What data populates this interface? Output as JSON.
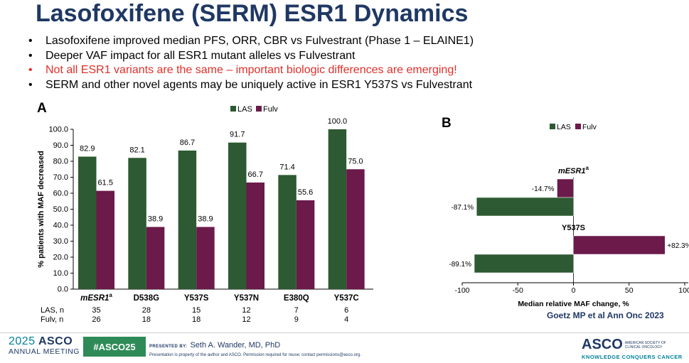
{
  "slide": {
    "title": "Lasofoxifene (SERM) ESR1 Dynamics",
    "bullets": [
      {
        "text": "Lasofoxifene improved median PFS, ORR, CBR vs Fulvestrant (Phase 1 – ELAINE1)",
        "color": "#000000"
      },
      {
        "text": "Deeper VAF impact for all ESR1 mutant alleles vs Fulvestrant",
        "color": "#000000"
      },
      {
        "text": "Not all ESR1 variants are the same – important biologic differences are emerging!",
        "color": "#e0302a"
      },
      {
        "text": "SERM and other novel agents may be uniquely active in ESR1 Y537S vs Fulvestrant",
        "color": "#000000"
      }
    ],
    "bullet_char": "•",
    "citation": "Goetz MP et al Ann Onc 2023"
  },
  "colors": {
    "las": "#2d5a32",
    "fulv": "#6b1a4a",
    "title": "#1f3864",
    "accent": "#00829b"
  },
  "chart_data": [
    {
      "panel": "A",
      "type": "bar",
      "ylabel": "% patients with MAF decreased",
      "ylim": [
        0,
        100
      ],
      "yticks": [
        "0.0",
        "10.0",
        "20.0",
        "30.0",
        "40.0",
        "50.0",
        "60.0",
        "70.0",
        "80.0",
        "90.0",
        "100.0"
      ],
      "categories": [
        "mESR1",
        "D538G",
        "Y537S",
        "Y537N",
        "E380Q",
        "Y537C"
      ],
      "first_category_superscript": "a",
      "series": [
        {
          "name": "LAS",
          "values": [
            82.9,
            82.1,
            86.7,
            91.7,
            71.4,
            100.0
          ],
          "labels": [
            "82.9",
            "82.1",
            "86.7",
            "91.7",
            "71.4",
            "100.0"
          ]
        },
        {
          "name": "Fulv",
          "values": [
            61.5,
            38.9,
            38.9,
            66.7,
            55.6,
            75.0
          ],
          "labels": [
            "61.5",
            "38.9",
            "38.9",
            "66.7",
            "55.6",
            "75.0"
          ]
        }
      ],
      "n_table": [
        {
          "label": "LAS, n",
          "values": [
            "35",
            "28",
            "15",
            "12",
            "7",
            "6"
          ]
        },
        {
          "label": "Fulv, n",
          "values": [
            "26",
            "18",
            "18",
            "12",
            "9",
            "4"
          ]
        }
      ],
      "legend_position": "top-center"
    },
    {
      "panel": "B",
      "type": "bar",
      "orientation": "horizontal",
      "xlabel": "Median relative MAF change, %",
      "xlim": [
        -100,
        100
      ],
      "xticks": [
        "-100",
        "-50",
        "0",
        "50",
        "100"
      ],
      "groups": [
        {
          "name": "mESR1",
          "superscript": "a",
          "bars": [
            {
              "series": "Fulv",
              "value": -14.7,
              "label": "-14.7%"
            },
            {
              "series": "LAS",
              "value": -87.1,
              "label": "-87.1%"
            }
          ]
        },
        {
          "name": "Y537S",
          "bars": [
            {
              "series": "Fulv",
              "value": 82.3,
              "label": "+82.3%"
            },
            {
              "series": "LAS",
              "value": -89.1,
              "label": "-89.1%"
            }
          ]
        }
      ],
      "legend": [
        "LAS",
        "Fulv"
      ],
      "legend_position": "top-center"
    }
  ],
  "footer": {
    "year": "2025",
    "asco": "ASCO",
    "annual_meeting": "ANNUAL MEETING",
    "hashtag": "#ASCO25",
    "presented_by": "PRESENTED BY:",
    "presenter": "Seth A. Wander, MD, PhD",
    "disclaimer": "Presentation is property of the author and ASCO. Permission required for reuse; contact permissions@asco.org.",
    "asco_right": "ASCO",
    "society_line1": "AMERICAN SOCIETY OF",
    "society_line2": "CLINICAL ONCOLOGY",
    "tagline": "KNOWLEDGE CONQUERS CANCER"
  }
}
